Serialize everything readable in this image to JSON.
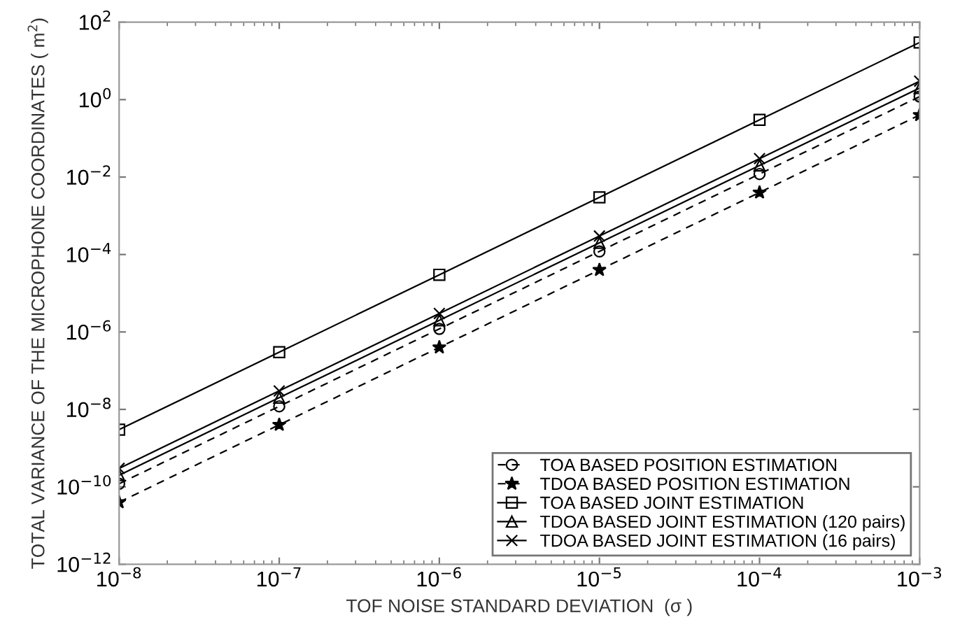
{
  "chart_data": {
    "type": "line",
    "xlabel": "TOF NOISE STANDARD DEVIATION  (σ )",
    "ylabel": "TOTAL VARIANCE OF THE MICROPHONE COORDINATES ( m$^{2}$)",
    "x": [
      1e-08,
      1e-07,
      1e-06,
      1e-05,
      0.0001,
      0.001
    ],
    "log": "xy",
    "grid": false,
    "legend": "bottom right",
    "xlim": [
      1e-08,
      0.001
    ],
    "ylim": [
      1e-12,
      100
    ],
    "xticks": [
      {
        "value": 1e-08,
        "label": "10$^{−8}$"
      },
      {
        "value": 1e-07,
        "label": "10$^{−7}$"
      },
      {
        "value": 1e-06,
        "label": "10$^{−6}$"
      },
      {
        "value": 1e-05,
        "label": "10$^{−5}$"
      },
      {
        "value": 0.0001,
        "label": "10$^{−4}$"
      },
      {
        "value": 0.001,
        "label": "10$^{−3}$"
      }
    ],
    "yticks": [
      {
        "value": 1e-12,
        "label": "10$^{−12}$"
      },
      {
        "value": 1e-10,
        "label": "10$^{−10}$"
      },
      {
        "value": 1e-08,
        "label": "10$^{−8}$"
      },
      {
        "value": 1e-06,
        "label": "10$^{−6}$"
      },
      {
        "value": 0.0001,
        "label": "10$^{−4}$"
      },
      {
        "value": 0.01,
        "label": "10$^{−2}$"
      },
      {
        "value": 1,
        "label": "10$^{0}$"
      },
      {
        "value": 100,
        "label": "10$^{2}$"
      }
    ],
    "series": [
      {
        "name": "TOA BASED POSITION ESTIMATION",
        "color": "#000000",
        "marker": "circle",
        "line_style": "dashed",
        "values": [
          1.2e-10,
          1.2e-08,
          1.2e-06,
          0.00012,
          0.012,
          1.2
        ]
      },
      {
        "name": "TDOA BASED POSITION ESTIMATION",
        "color": "#000000",
        "marker": "star",
        "line_style": "dashed",
        "values": [
          4e-11,
          4e-09,
          4e-07,
          4e-05,
          0.004,
          0.4
        ]
      },
      {
        "name": "TOA BASED JOINT ESTIMATION",
        "color": "#000000",
        "marker": "square",
        "line_style": "solid",
        "values": [
          3e-09,
          3e-07,
          3e-05,
          0.003,
          0.3,
          30
        ]
      },
      {
        "name": "TDOA BASED JOINT ESTIMATION (120 pairs)",
        "color": "#000000",
        "marker": "triangle",
        "line_style": "solid",
        "values": [
          2e-10,
          2e-08,
          2e-06,
          0.0002,
          0.02,
          2
        ]
      },
      {
        "name": "TDOA BASED JOINT ESTIMATION (16 pairs)",
        "color": "#000000",
        "marker": "cross",
        "line_style": "solid",
        "values": [
          3e-10,
          3e-08,
          3e-06,
          0.0003,
          0.03,
          3
        ]
      }
    ]
  }
}
